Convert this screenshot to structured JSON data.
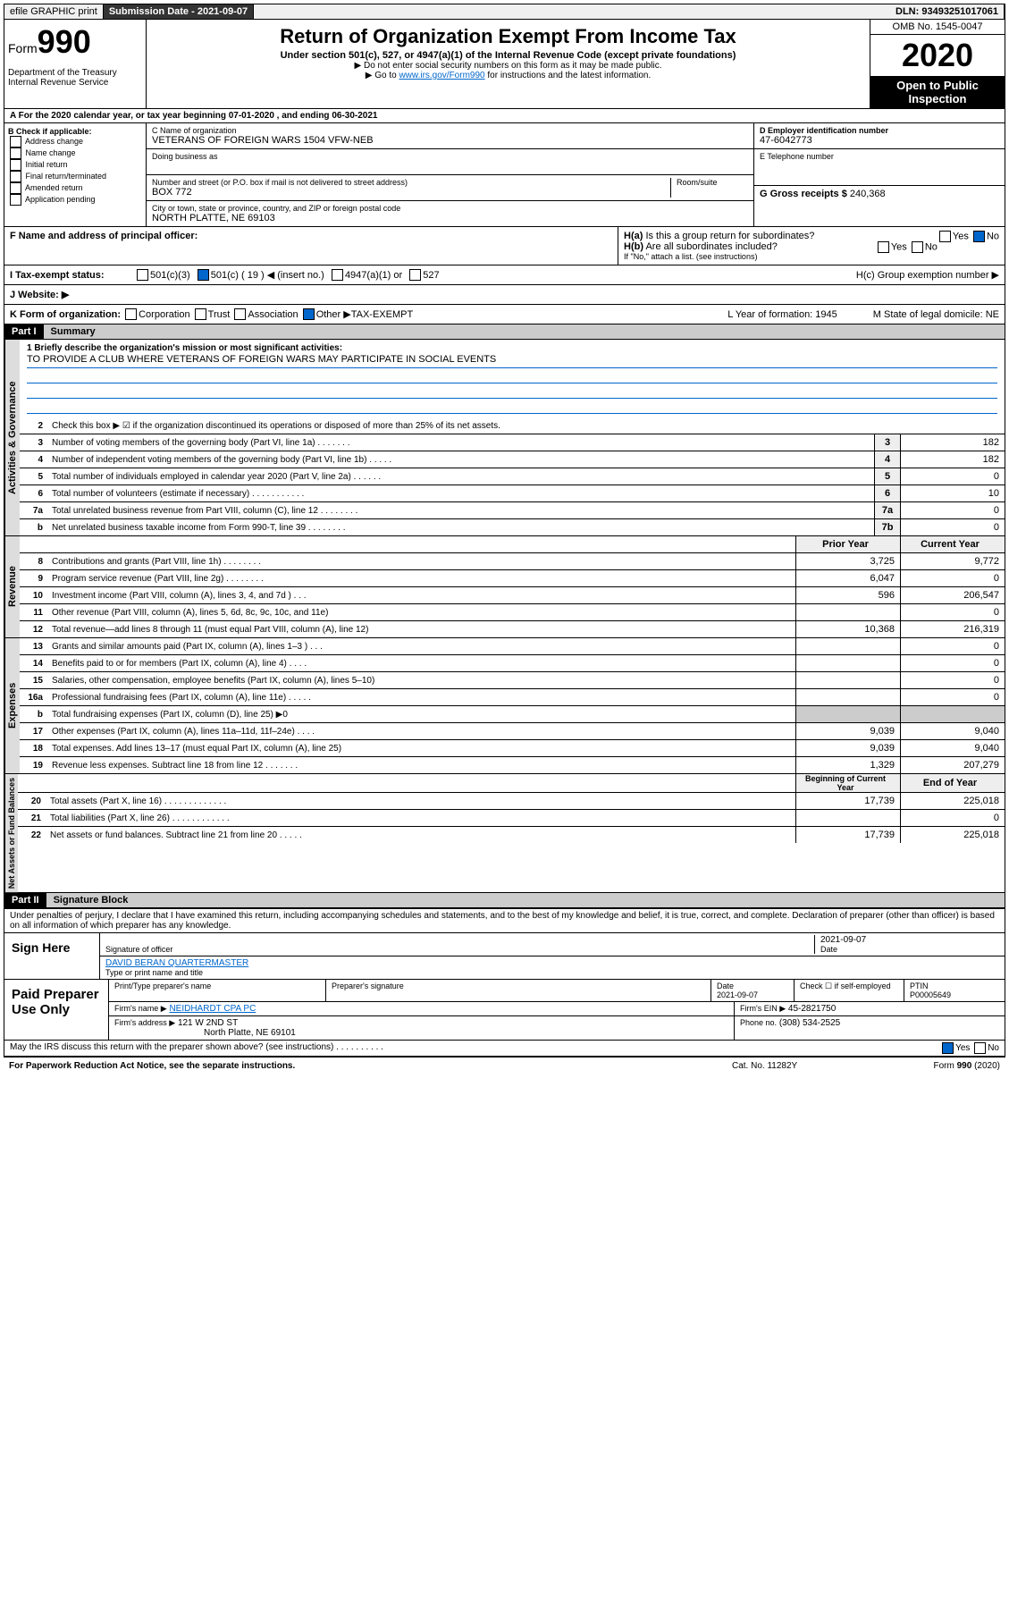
{
  "top": {
    "efile": "efile GRAPHIC print",
    "submission": "Submission Date - 2021-09-07",
    "dln": "DLN: 93493251017061"
  },
  "header": {
    "form_prefix": "Form",
    "form_num": "990",
    "dept": "Department of the Treasury Internal Revenue Service",
    "title": "Return of Organization Exempt From Income Tax",
    "sub": "Under section 501(c), 527, or 4947(a)(1) of the Internal Revenue Code (except private foundations)",
    "note1": "▶ Do not enter social security numbers on this form as it may be made public.",
    "note2_a": "▶ Go to ",
    "note2_link": "www.irs.gov/Form990",
    "note2_b": " for instructions and the latest information.",
    "omb": "OMB No. 1545-0047",
    "year": "2020",
    "open": "Open to Public Inspection"
  },
  "a": {
    "tax_year": "A For the 2020 calendar year, or tax year beginning 07-01-2020   , and ending 06-30-2021"
  },
  "b": {
    "label": "B Check if applicable:",
    "opts": [
      "Address change",
      "Name change",
      "Initial return",
      "Final return/terminated",
      "Amended return",
      "Application pending"
    ]
  },
  "c": {
    "name_label": "C Name of organization",
    "name": "VETERANS OF FOREIGN WARS 1504 VFW-NEB",
    "dba_label": "Doing business as",
    "addr_label": "Number and street (or P.O. box if mail is not delivered to street address)",
    "addr": "BOX 772",
    "room_label": "Room/suite",
    "city_label": "City or town, state or province, country, and ZIP or foreign postal code",
    "city": "NORTH PLATTE, NE  69103"
  },
  "d": {
    "ein_label": "D Employer identification number",
    "ein": "47-6042773",
    "phone_label": "E Telephone number",
    "gross_label": "G Gross receipts $",
    "gross": "240,368"
  },
  "f": {
    "label": "F Name and address of principal officer:"
  },
  "h": {
    "a": "H(a)  Is this a group return for subordinates?",
    "b": "H(b)  Are all subordinates included?",
    "b_note": "If \"No,\" attach a list. (see instructions)",
    "c": "H(c)  Group exemption number ▶"
  },
  "i": {
    "label": "I Tax-exempt status:",
    "c19": "501(c) ( 19 ) ◀ (insert no.)"
  },
  "j": {
    "label": "J  Website: ▶"
  },
  "k": {
    "label": "K Form of organization:",
    "other": "Other ▶",
    "other_val": "TAX-EXEMPT",
    "l": "L Year of formation: 1945",
    "m": "M State of legal domicile: NE"
  },
  "part1": {
    "title": "Part I",
    "sub": "Summary",
    "mission_label": "1  Briefly describe the organization's mission or most significant activities:",
    "mission": "TO PROVIDE A CLUB WHERE VETERANS OF FOREIGN WARS MAY PARTICIPATE IN SOCIAL EVENTS",
    "line2": "Check this box ▶ ☑ if the organization discontinued its operations or disposed of more than 25% of its net assets.",
    "vert1": "Activities & Governance",
    "vert2": "Revenue",
    "vert3": "Expenses",
    "vert4": "Net Assets or Fund Balances",
    "col_prior": "Prior Year",
    "col_current": "Current Year",
    "col_begin": "Beginning of Current Year",
    "col_end": "End of Year",
    "rows_gov": [
      {
        "n": "3",
        "t": "Number of voting members of the governing body (Part VI, line 1a)  .    .    .    .    .    .    .",
        "b": "3",
        "v": "182"
      },
      {
        "n": "4",
        "t": "Number of independent voting members of the governing body (Part VI, line 1b)  .    .    .    .    .",
        "b": "4",
        "v": "182"
      },
      {
        "n": "5",
        "t": "Total number of individuals employed in calendar year 2020 (Part V, line 2a)  .    .    .    .    .    .",
        "b": "5",
        "v": "0"
      },
      {
        "n": "6",
        "t": "Total number of volunteers (estimate if necessary)  .    .    .    .    .    .    .    .    .    .    .",
        "b": "6",
        "v": "10"
      },
      {
        "n": "7a",
        "t": "Total unrelated business revenue from Part VIII, column (C), line 12  .    .    .    .    .    .    .    .",
        "b": "7a",
        "v": "0"
      },
      {
        "n": "b",
        "t": "Net unrelated business taxable income from Form 990-T, line 39  .    .    .    .    .    .    .    .",
        "b": "7b",
        "v": "0"
      }
    ],
    "rows_rev": [
      {
        "n": "8",
        "t": "Contributions and grants (Part VIII, line 1h)  .    .    .    .    .    .    .    .",
        "p": "3,725",
        "c": "9,772"
      },
      {
        "n": "9",
        "t": "Program service revenue (Part VIII, line 2g)  .    .    .    .    .    .    .    .",
        "p": "6,047",
        "c": "0"
      },
      {
        "n": "10",
        "t": "Investment income (Part VIII, column (A), lines 3, 4, and 7d )  .    .    .",
        "p": "596",
        "c": "206,547"
      },
      {
        "n": "11",
        "t": "Other revenue (Part VIII, column (A), lines 5, 6d, 8c, 9c, 10c, and 11e)",
        "p": "",
        "c": "0"
      },
      {
        "n": "12",
        "t": "Total revenue—add lines 8 through 11 (must equal Part VIII, column (A), line 12)",
        "p": "10,368",
        "c": "216,319"
      }
    ],
    "rows_exp": [
      {
        "n": "13",
        "t": "Grants and similar amounts paid (Part IX, column (A), lines 1–3 )  .    .    .",
        "p": "",
        "c": "0"
      },
      {
        "n": "14",
        "t": "Benefits paid to or for members (Part IX, column (A), line 4)  .    .    .    .",
        "p": "",
        "c": "0"
      },
      {
        "n": "15",
        "t": "Salaries, other compensation, employee benefits (Part IX, column (A), lines 5–10)",
        "p": "",
        "c": "0"
      },
      {
        "n": "16a",
        "t": "Professional fundraising fees (Part IX, column (A), line 11e)  .    .    .    .    .",
        "p": "",
        "c": "0"
      },
      {
        "n": "b",
        "t": "Total fundraising expenses (Part IX, column (D), line 25) ▶0",
        "p": "",
        "c": "",
        "shade": true
      },
      {
        "n": "17",
        "t": "Other expenses (Part IX, column (A), lines 11a–11d, 11f–24e)  .    .    .    .",
        "p": "9,039",
        "c": "9,040"
      },
      {
        "n": "18",
        "t": "Total expenses. Add lines 13–17 (must equal Part IX, column (A), line 25)",
        "p": "9,039",
        "c": "9,040"
      },
      {
        "n": "19",
        "t": "Revenue less expenses. Subtract line 18 from line 12  .    .    .    .    .    .    .",
        "p": "1,329",
        "c": "207,279"
      }
    ],
    "rows_net": [
      {
        "n": "20",
        "t": "Total assets (Part X, line 16)  .    .    .    .    .    .    .    .    .    .    .    .    .",
        "p": "17,739",
        "c": "225,018"
      },
      {
        "n": "21",
        "t": "Total liabilities (Part X, line 26)  .    .    .    .    .    .    .    .    .    .    .    .",
        "p": "",
        "c": "0"
      },
      {
        "n": "22",
        "t": "Net assets or fund balances. Subtract line 21 from line 20  .    .    .    .    .",
        "p": "17,739",
        "c": "225,018"
      }
    ]
  },
  "part2": {
    "title": "Part II",
    "sub": "Signature Block",
    "declare": "Under penalties of perjury, I declare that I have examined this return, including accompanying schedules and statements, and to the best of my knowledge and belief, it is true, correct, and complete. Declaration of preparer (other than officer) is based on all information of which preparer has any knowledge.",
    "sign_here": "Sign Here",
    "sig_officer": "Signature of officer",
    "sig_date": "2021-09-07",
    "date_label": "Date",
    "officer_name": "DAVID BERAN QUARTERMASTER",
    "name_title_label": "Type or print name and title",
    "paid": "Paid Preparer Use Only",
    "p_name_label": "Print/Type preparer's name",
    "p_sig_label": "Preparer's signature",
    "p_date_label": "Date",
    "p_date": "2021-09-07",
    "p_check": "Check ☐ if self-employed",
    "ptin_label": "PTIN",
    "ptin": "P00005649",
    "firm_name_label": "Firm's name    ▶",
    "firm_name": "NEIDHARDT CPA PC",
    "firm_ein_label": "Firm's EIN ▶",
    "firm_ein": "45-2821750",
    "firm_addr_label": "Firm's address ▶",
    "firm_addr": "121 W 2ND ST",
    "firm_city": "North Platte, NE  69101",
    "phone_label": "Phone no.",
    "phone": "(308) 534-2525",
    "discuss": "May the IRS discuss this return with the preparer shown above? (see instructions)   .    .    .    .    .    .    .    .    .    ."
  },
  "footer": {
    "left": "For Paperwork Reduction Act Notice, see the separate instructions.",
    "mid": "Cat. No. 11282Y",
    "right": "Form 990 (2020)"
  }
}
